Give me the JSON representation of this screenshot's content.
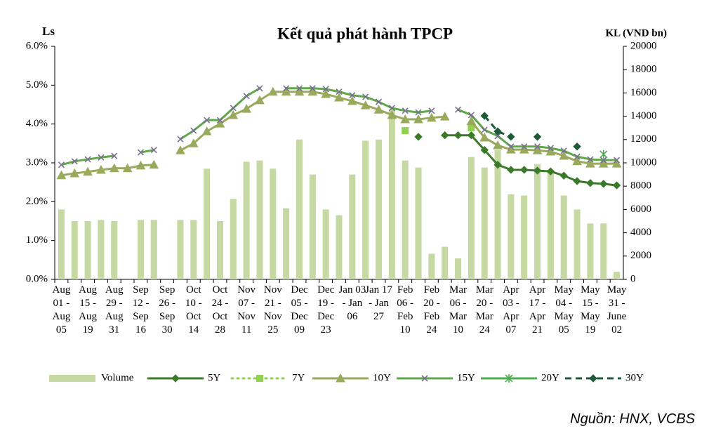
{
  "chart_data": {
    "type": "combo",
    "title": "Kết quả phát hành TPCP",
    "y_label": "Ls",
    "y2_label": "KL (VND bn)",
    "source": "Nguồn: HNX, VCBS",
    "categories": [
      "Aug 01 - Aug 05",
      null,
      "Aug 15 - Aug 19",
      null,
      "Aug 29 - Aug 31",
      null,
      "Sep 12 - Sep 16",
      null,
      "Sep 26 - Sep 30",
      null,
      "Oct 10 - Oct 14",
      null,
      "Oct 24 - Oct 28",
      null,
      "Nov 07 - Nov 11",
      null,
      "Nov 21 - Nov 25",
      null,
      "Dec 05 - Dec 09",
      null,
      "Dec 19 - Dec 23",
      null,
      "Jan 03 - Jan 06",
      null,
      "Jan 17 - Jan 27",
      null,
      "Feb 06 - Feb 10",
      null,
      "Feb 20 - Feb 24",
      null,
      "Mar 06 - Mar 10",
      null,
      "Mar 20 - Mar 24",
      null,
      "Apr 03 - Apr 07",
      null,
      "Apr 17 - Apr 21",
      null,
      "May 04 - May 05",
      null,
      "May 15 - May 19",
      null,
      "May 31 - June 02"
    ],
    "ylim": [
      0,
      6
    ],
    "yticks": [
      {
        "value": 0,
        "label": "0.0%"
      },
      {
        "value": 1,
        "label": "1.0%"
      },
      {
        "value": 2,
        "label": "2.0%"
      },
      {
        "value": 3,
        "label": "3.0%"
      },
      {
        "value": 4,
        "label": "4.0%"
      },
      {
        "value": 5,
        "label": "5.0%"
      },
      {
        "value": 6,
        "label": "6.0%"
      }
    ],
    "y2lim": [
      0,
      20000
    ],
    "y2ticks": [
      0,
      2000,
      4000,
      6000,
      8000,
      10000,
      12000,
      14000,
      16000,
      18000,
      20000
    ],
    "series": [
      {
        "name": "Volume",
        "type": "bar",
        "axis": "y2",
        "color": "#c6d9a2",
        "values": [
          6000,
          5000,
          5000,
          5100,
          5000,
          null,
          5100,
          5100,
          null,
          5100,
          5100,
          9500,
          5000,
          6900,
          10100,
          10200,
          9500,
          6100,
          12000,
          9000,
          6000,
          5500,
          9000,
          11900,
          12000,
          14600,
          10200,
          9600,
          2200,
          2800,
          1800,
          10500,
          9600,
          11100,
          7300,
          7200,
          9900,
          9400,
          7200,
          6000,
          4800,
          4800,
          650
        ]
      },
      {
        "name": "5Y",
        "type": "line",
        "color": "#3b7a2a",
        "marker": "diamond",
        "marker_color": "#3b7a2a",
        "line_style": "solid",
        "values": [
          null,
          null,
          null,
          null,
          null,
          null,
          null,
          null,
          null,
          null,
          null,
          null,
          null,
          null,
          null,
          null,
          null,
          null,
          null,
          null,
          null,
          null,
          null,
          null,
          null,
          null,
          null,
          3.67,
          null,
          3.71,
          3.71,
          3.71,
          3.33,
          2.95,
          2.82,
          2.82,
          2.8,
          2.78,
          2.67,
          2.53,
          2.48,
          2.46,
          2.42
        ]
      },
      {
        "name": "7Y",
        "type": "line",
        "color": "#92d050",
        "marker": "square",
        "marker_color": "#92d050",
        "line_style": "dotted",
        "values": [
          null,
          null,
          null,
          null,
          null,
          null,
          null,
          null,
          null,
          null,
          null,
          null,
          null,
          null,
          null,
          null,
          null,
          null,
          null,
          null,
          null,
          null,
          null,
          null,
          null,
          null,
          3.83,
          null,
          null,
          null,
          null,
          3.9,
          null,
          null,
          null,
          null,
          null,
          null,
          null,
          null,
          null,
          null,
          null
        ]
      },
      {
        "name": "10Y",
        "type": "line",
        "color": "#9aaa5c",
        "marker": "triangle",
        "marker_color": "#9aaa5c",
        "line_style": "solid",
        "values": [
          2.68,
          2.73,
          2.77,
          2.82,
          2.86,
          2.86,
          2.93,
          2.95,
          null,
          3.32,
          3.5,
          3.81,
          4.01,
          4.23,
          4.39,
          4.61,
          4.83,
          4.83,
          4.83,
          4.83,
          4.77,
          4.68,
          4.59,
          4.48,
          4.37,
          4.23,
          4.12,
          4.12,
          4.16,
          4.19,
          null,
          4.07,
          3.65,
          3.45,
          3.34,
          3.34,
          3.32,
          3.29,
          3.18,
          3.04,
          2.98,
          2.98,
          2.98
        ]
      },
      {
        "name": "15Y",
        "type": "line",
        "color": "#5fa84a",
        "marker": "x",
        "marker_color": "#7a6d92",
        "line_style": "solid",
        "values": [
          2.95,
          3.04,
          3.09,
          3.14,
          3.18,
          null,
          3.27,
          3.33,
          null,
          3.61,
          3.83,
          4.1,
          4.1,
          4.41,
          4.72,
          4.92,
          null,
          4.92,
          4.92,
          4.92,
          4.9,
          4.83,
          4.74,
          4.7,
          4.57,
          4.41,
          4.34,
          4.3,
          4.34,
          null,
          4.37,
          4.23,
          3.85,
          3.69,
          3.42,
          3.42,
          3.42,
          3.38,
          3.31,
          3.16,
          3.09,
          3.07,
          3.07
        ]
      },
      {
        "name": "20Y",
        "type": "line",
        "color": "#4caf50",
        "marker": "asterisk",
        "marker_color": "#4caf50",
        "line_style": "solid",
        "values": [
          null,
          null,
          null,
          null,
          null,
          null,
          null,
          null,
          null,
          null,
          null,
          null,
          null,
          null,
          null,
          null,
          null,
          null,
          null,
          null,
          null,
          null,
          null,
          null,
          null,
          null,
          null,
          null,
          null,
          null,
          null,
          null,
          null,
          null,
          null,
          null,
          null,
          null,
          null,
          null,
          null,
          3.22,
          null
        ]
      },
      {
        "name": "30Y",
        "type": "line",
        "color": "#1f5a3a",
        "marker": "diamond",
        "marker_color": "#1f5a3a",
        "line_style": "dashed",
        "values": [
          null,
          null,
          null,
          null,
          null,
          null,
          null,
          null,
          null,
          null,
          null,
          null,
          null,
          null,
          null,
          null,
          null,
          null,
          null,
          null,
          null,
          null,
          null,
          null,
          null,
          null,
          null,
          null,
          null,
          null,
          null,
          null,
          4.21,
          3.81,
          3.67,
          null,
          3.67,
          null,
          null,
          3.42,
          null,
          null,
          null
        ]
      }
    ]
  }
}
